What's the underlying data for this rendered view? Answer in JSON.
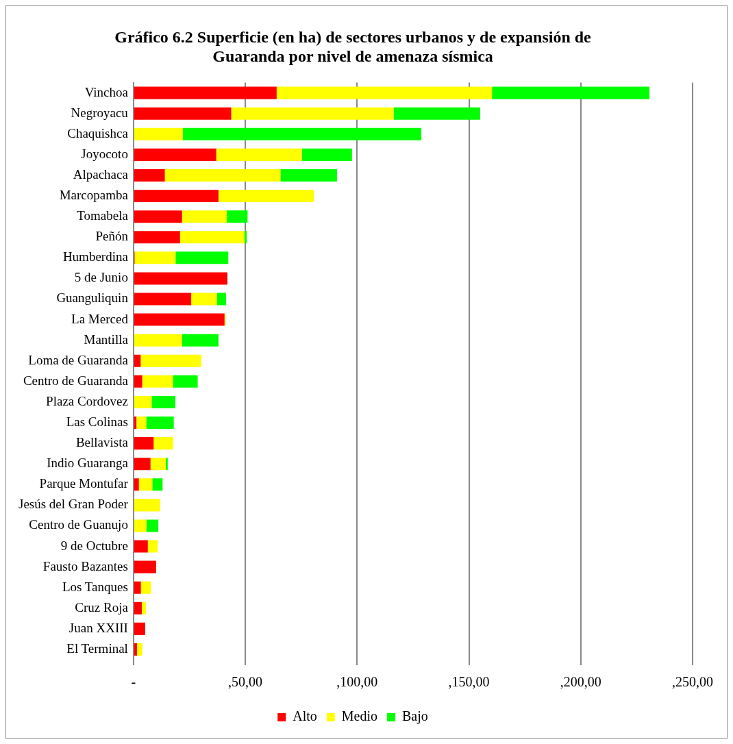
{
  "chart_data": {
    "type": "bar",
    "orientation": "horizontal",
    "stacked": true,
    "title": "Gráfico 6.2 Superficie (en ha) de sectores urbanos y de expansión de Guaranda por nivel de amenaza sísmica",
    "categories": [
      "Vinchoa",
      "Negroyacu",
      "Chaquishca",
      "Joyocoto",
      "Alpachaca",
      "Marcopamba",
      "Tomabela",
      "Peñón",
      "Humberdina",
      "5 de Junio",
      "Guanguliquin",
      "La Merced",
      "Mantilla",
      "Loma de Guaranda",
      "Centro de Guaranda",
      "Plaza Cordovez",
      "Las Colinas",
      "Bellavista",
      "Indio Guaranga",
      "Parque Montufar",
      "Jesús del Gran Poder",
      "Centro de Guanujo",
      "9 de Octubre",
      "Fausto Bazantes",
      "Los Tanques",
      "Cruz Roja",
      "Juan XXIII",
      "El Terminal"
    ],
    "series": [
      {
        "name": "Alto",
        "color": "#ff0000",
        "values": [
          64,
          43.7,
          null,
          37,
          14,
          38,
          21.7,
          20.8,
          0.5,
          42,
          25.8,
          40.7,
          null,
          3.2,
          3.9,
          null,
          1.3,
          9,
          7.6,
          2.4,
          null,
          null,
          6.4,
          10.1,
          3.3,
          3.7,
          5.2,
          1.6
        ]
      },
      {
        "name": "Medio",
        "color": "#ffff00",
        "values": [
          96.3,
          72.6,
          22,
          38.3,
          51.7,
          42.7,
          20,
          28.8,
          18.3,
          null,
          11.5,
          0.5,
          21.7,
          27.1,
          13.7,
          8.1,
          4.4,
          8.7,
          6.8,
          6,
          11.9,
          5.8,
          4.4,
          null,
          4.5,
          1.9,
          null,
          2.3
        ]
      },
      {
        "name": "Bajo",
        "color": "#00ff00",
        "values": [
          70.4,
          38.7,
          106.7,
          22.4,
          25.3,
          null,
          9.3,
          1,
          23.6,
          null,
          4.1,
          null,
          16.3,
          null,
          11.1,
          10.6,
          12.3,
          null,
          0.9,
          4.6,
          null,
          5.3,
          null,
          null,
          null,
          null,
          null,
          null
        ]
      }
    ],
    "xlim": [
      0,
      250
    ],
    "xticks": [
      {
        "value": 0,
        "label": "-"
      },
      {
        "value": 50,
        "label": ",50,00"
      },
      {
        "value": 100,
        "label": ",100,00"
      },
      {
        "value": 150,
        "label": ",150,00"
      },
      {
        "value": 200,
        "label": ",200,00"
      },
      {
        "value": 250,
        "label": ",250,00"
      }
    ],
    "grid": "x",
    "legend": "bottom"
  }
}
